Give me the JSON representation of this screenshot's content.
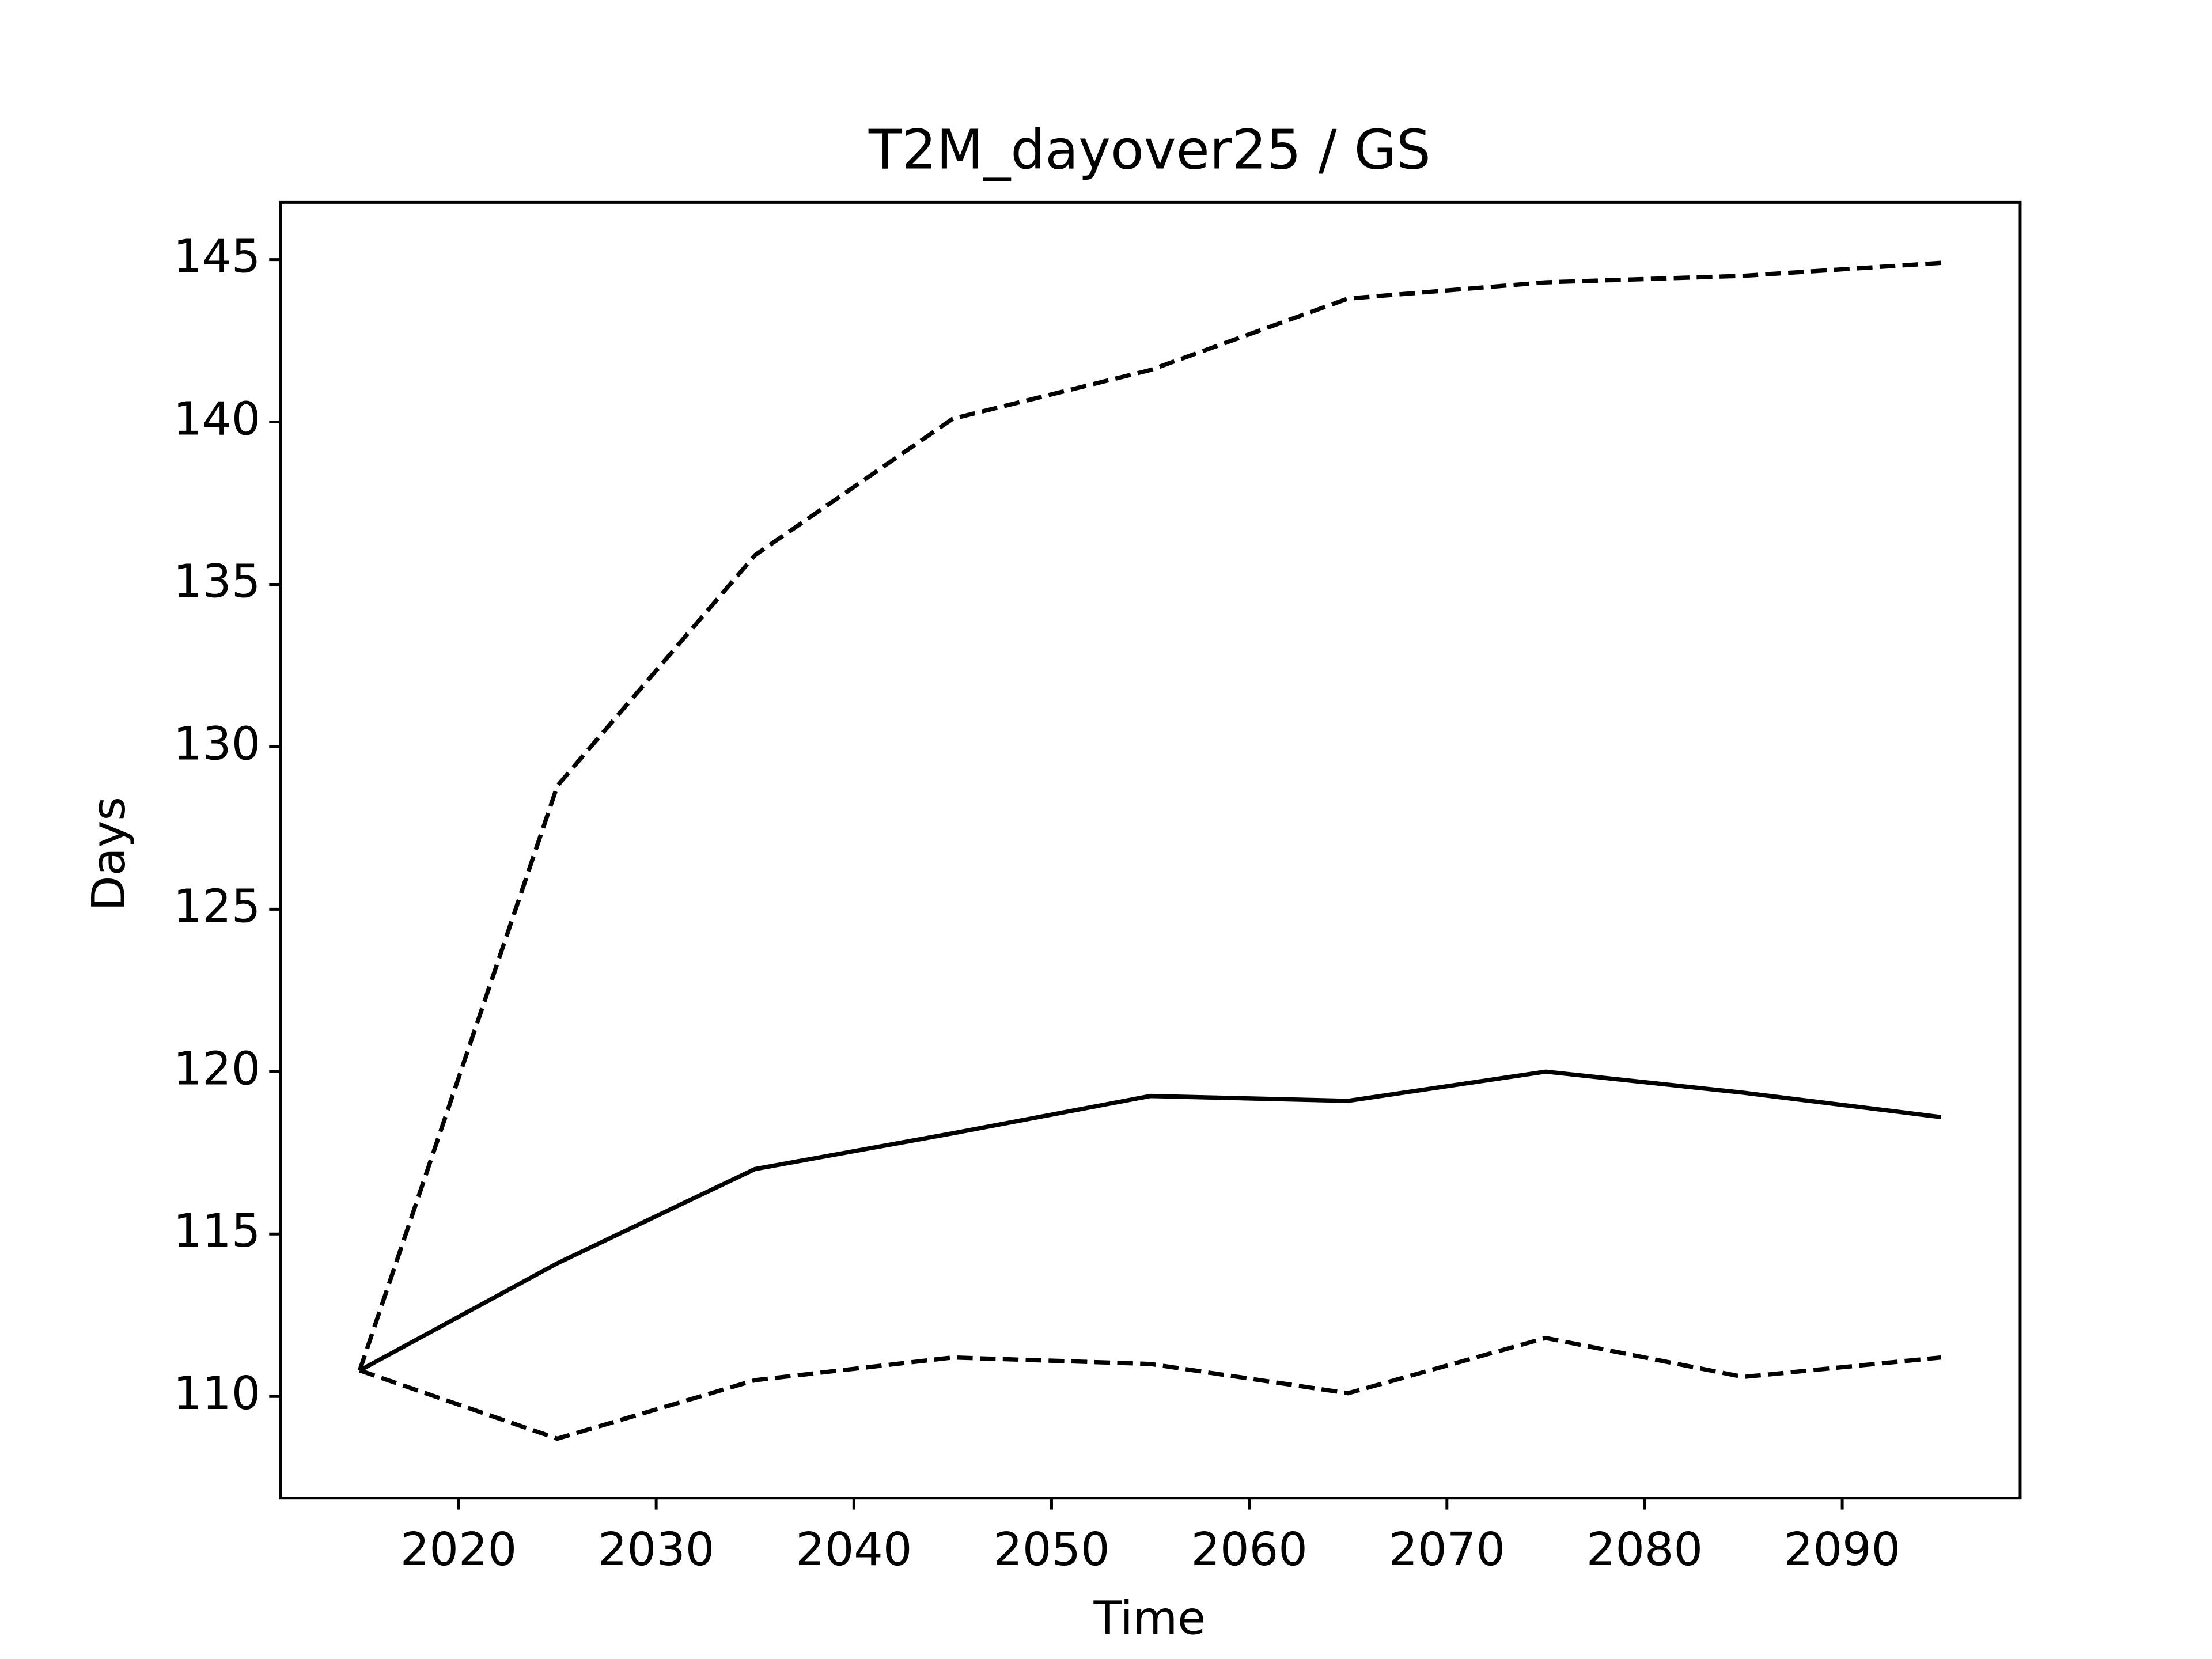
{
  "chart_data": {
    "type": "line",
    "title": "T2M_dayover25 / GS",
    "xlabel": "Time",
    "ylabel": "Days",
    "x": [
      2015,
      2025,
      2035,
      2045,
      2055,
      2065,
      2075,
      2085,
      2095
    ],
    "series": [
      {
        "color": "#000000",
        "linestyle": "solid",
        "values": [
          110.8,
          114.1,
          117.0,
          118.1,
          119.25,
          119.1,
          120.0,
          119.35,
          118.6
        ]
      },
      {
        "color": "#000000",
        "linestyle": "dashed",
        "values": [
          110.8,
          128.8,
          135.9,
          140.1,
          141.6,
          143.8,
          144.3,
          144.5,
          144.9
        ]
      },
      {
        "color": "#000000",
        "linestyle": "dashed",
        "values": [
          110.8,
          108.7,
          110.5,
          111.2,
          111.0,
          110.1,
          111.8,
          110.6,
          111.2
        ]
      }
    ],
    "xlim": [
      2011,
      2099
    ],
    "xticks": [
      2020,
      2030,
      2040,
      2050,
      2060,
      2070,
      2080,
      2090
    ],
    "ylim": [
      106.87,
      146.76
    ],
    "yticks": [
      110,
      115,
      120,
      125,
      130,
      135,
      140,
      145
    ]
  }
}
